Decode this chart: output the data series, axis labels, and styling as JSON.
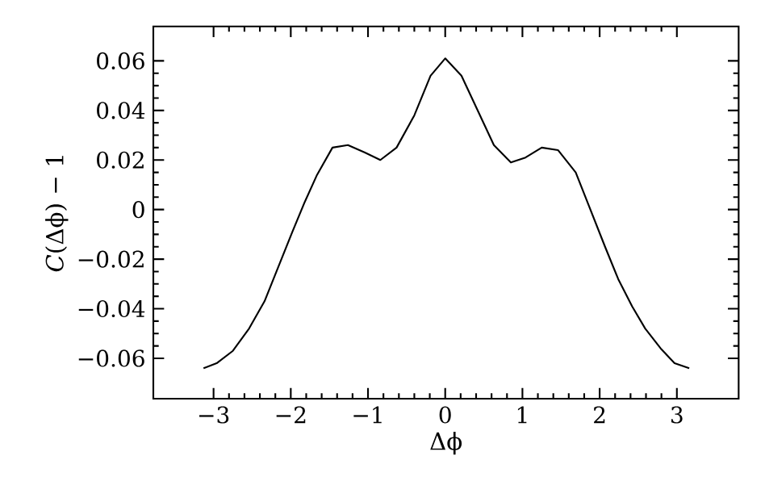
{
  "chart_data": {
    "type": "line",
    "xlabel": "Δϕ",
    "ylabel": "*C*(Δϕ) − 1",
    "x": [
      -3.13,
      -2.96,
      -2.75,
      -2.54,
      -2.34,
      -2.16,
      -1.98,
      -1.82,
      -1.66,
      -1.46,
      -1.26,
      -1.04,
      -0.84,
      -0.63,
      -0.4,
      -0.19,
      0,
      0.21,
      0.42,
      0.63,
      0.85,
      1.04,
      1.25,
      1.46,
      1.69,
      1.88,
      2.07,
      2.24,
      2.42,
      2.59,
      2.79,
      2.97,
      3.16
    ],
    "series": [
      {
        "color": "#000000",
        "values": [
          -0.064,
          -0.062,
          -0.057,
          -0.048,
          -0.037,
          -0.023,
          -0.009,
          0.003,
          0.014,
          0.025,
          0.026,
          0.023,
          0.02,
          0.025,
          0.038,
          0.054,
          0.061,
          0.054,
          0.04,
          0.026,
          0.019,
          0.021,
          0.025,
          0.024,
          0.015,
          0.0,
          -0.015,
          -0.028,
          -0.039,
          -0.048,
          -0.056,
          -0.062,
          -0.064
        ]
      }
    ],
    "xlim": [
      -3.78,
      3.8
    ],
    "ylim": [
      -0.0763,
      0.0739
    ],
    "xticks": [
      {
        "value": -3,
        "label": "−3"
      },
      {
        "value": -2,
        "label": "−2"
      },
      {
        "value": -1,
        "label": "−1"
      },
      0,
      1,
      2,
      3
    ],
    "yticks": [
      {
        "value": -0.06,
        "label": "−0.06"
      },
      {
        "value": -0.04,
        "label": "−0.04"
      },
      {
        "value": -0.02,
        "label": "−0.02"
      },
      0,
      {
        "value": 0.02,
        "label": "0.02"
      },
      {
        "value": 0.04,
        "label": "0.04"
      },
      {
        "value": 0.06,
        "label": "0.06"
      }
    ],
    "grid": false,
    "marker": "none",
    "line_style": "solid"
  }
}
